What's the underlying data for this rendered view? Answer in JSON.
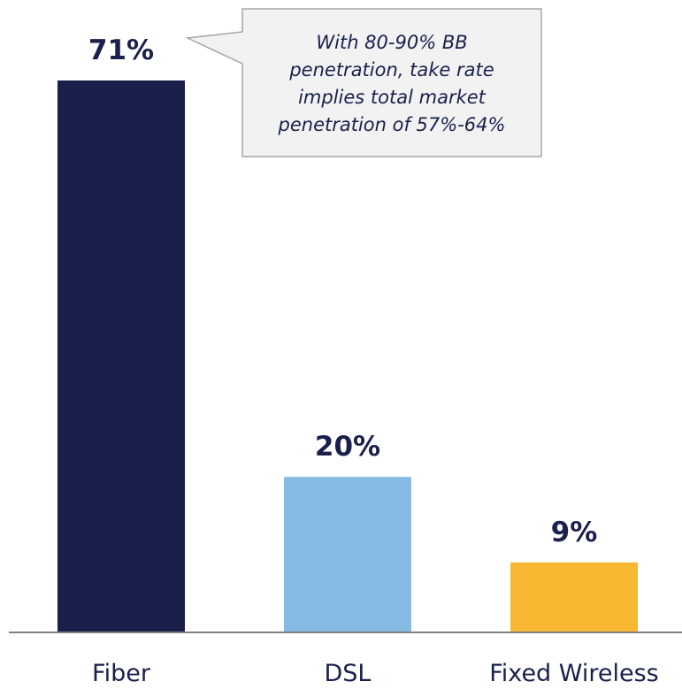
{
  "chart_data": {
    "type": "bar",
    "categories": [
      "Fiber",
      "DSL",
      "Fixed Wireless"
    ],
    "values": [
      71,
      20,
      9
    ],
    "value_labels": [
      "71%",
      "20%",
      "9%"
    ],
    "colors": [
      "#1a1f4b",
      "#85bbe3",
      "#f7b731"
    ],
    "ylim": [
      0,
      71
    ],
    "grid": false,
    "axis_color": "#808080",
    "annotation": {
      "lines": [
        "With 80-90% BB",
        "penetration, take rate",
        "implies total market",
        "penetration of 57%-64%"
      ],
      "target_category": "Fiber",
      "fill": "#f2f2f2",
      "stroke": "#a6a6a6"
    }
  }
}
